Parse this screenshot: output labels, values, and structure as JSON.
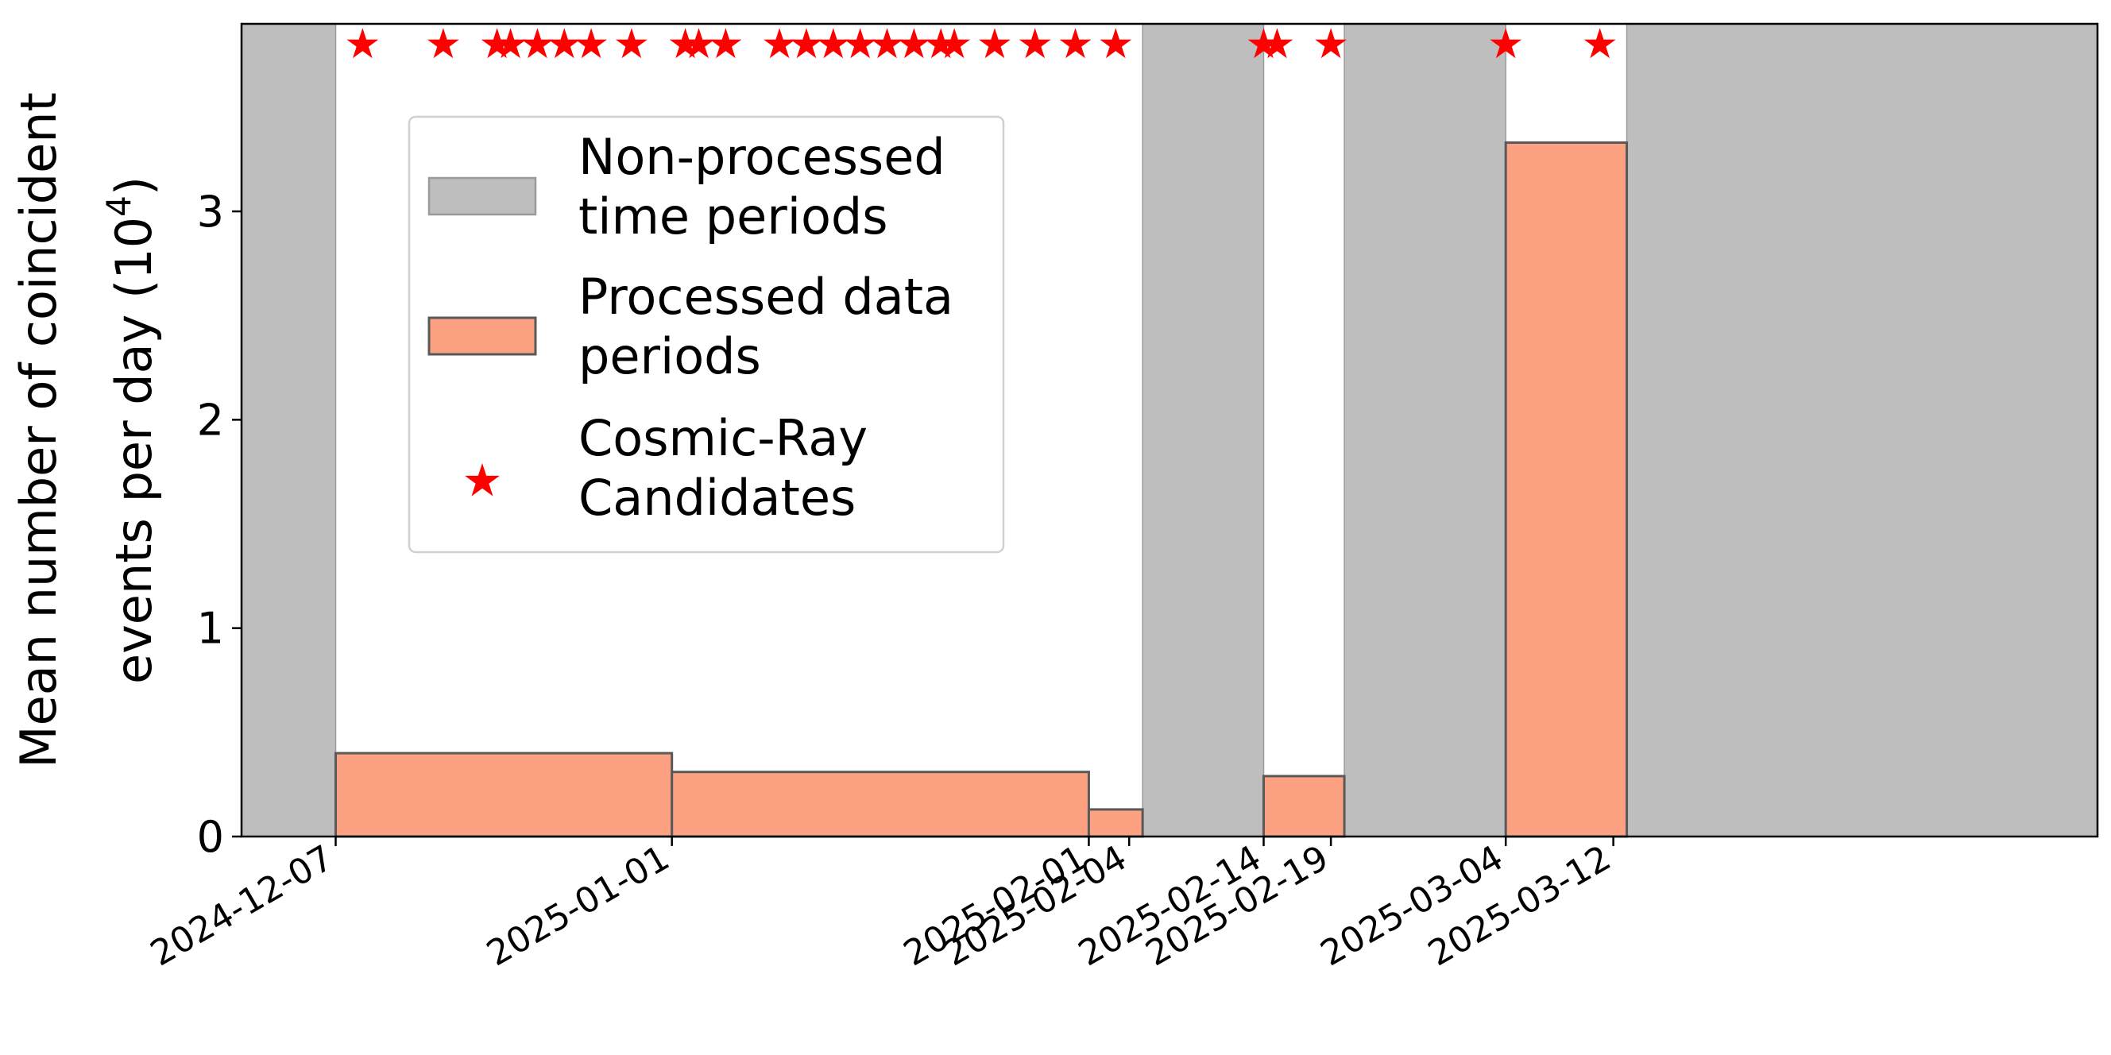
{
  "chart_data": {
    "type": "bar",
    "ylabel_lines": [
      "Mean number of coincident",
      "events per day (10"
    ],
    "ylabel_exponent": "4",
    "ylabel_close": ")",
    "ylim": [
      0,
      3.9
    ],
    "yticks": [
      0,
      1,
      2,
      3
    ],
    "xlim": [
      "2024-11-30",
      "2025-04-17"
    ],
    "xticks": [
      "2024-12-07",
      "2025-01-01",
      "2025-02-01",
      "2025-02-04",
      "2025-02-14",
      "2025-02-19",
      "2025-03-04",
      "2025-03-12"
    ],
    "non_processed_periods": [
      [
        "2024-11-30",
        "2024-12-07"
      ],
      [
        "2025-02-05",
        "2025-02-14"
      ],
      [
        "2025-02-20",
        "2025-03-04"
      ],
      [
        "2025-03-13",
        "2025-04-17"
      ]
    ],
    "processed_periods": [
      {
        "start": "2024-12-07",
        "end": "2025-01-01",
        "value": 0.4
      },
      {
        "start": "2025-01-01",
        "end": "2025-02-01",
        "value": 0.31
      },
      {
        "start": "2025-02-01",
        "end": "2025-02-05",
        "value": 0.13
      },
      {
        "start": "2025-02-14",
        "end": "2025-02-20",
        "value": 0.29
      },
      {
        "start": "2025-03-04",
        "end": "2025-03-13",
        "value": 3.33
      }
    ],
    "cosmic_ray_candidates": {
      "y": 3.8,
      "dates": [
        "2024-12-09",
        "2024-12-15",
        "2024-12-19",
        "2024-12-20",
        "2024-12-22",
        "2024-12-24",
        "2024-12-26",
        "2024-12-29",
        "2025-01-02",
        "2025-01-03",
        "2025-01-05",
        "2025-01-09",
        "2025-01-11",
        "2025-01-13",
        "2025-01-15",
        "2025-01-17",
        "2025-01-19",
        "2025-01-21",
        "2025-01-22",
        "2025-01-25",
        "2025-01-28",
        "2025-01-31",
        "2025-02-03",
        "2025-02-14",
        "2025-02-15",
        "2025-02-19",
        "2025-03-04",
        "2025-03-11"
      ]
    },
    "legend": {
      "position": "upper-left",
      "entries": [
        {
          "kind": "non-processed",
          "lines": [
            "Non-processed",
            "time periods"
          ]
        },
        {
          "kind": "processed",
          "lines": [
            "Processed data",
            "periods"
          ]
        },
        {
          "kind": "candidates",
          "lines": [
            "Cosmic-Ray",
            "Candidates"
          ]
        }
      ]
    },
    "colors": {
      "non_processed_fill": "#bebebe",
      "processed_fill": "#fca283",
      "bar_edge": "#595959",
      "candidate": "#ff0000"
    }
  }
}
